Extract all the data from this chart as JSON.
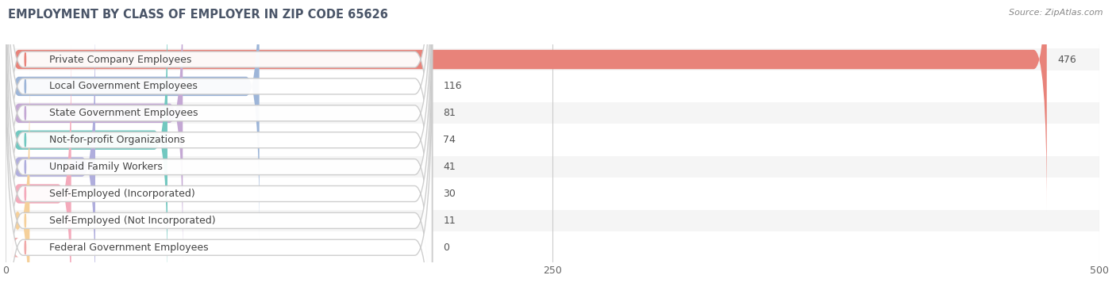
{
  "title": "EMPLOYMENT BY CLASS OF EMPLOYER IN ZIP CODE 65626",
  "source": "Source: ZipAtlas.com",
  "categories": [
    "Private Company Employees",
    "Local Government Employees",
    "State Government Employees",
    "Not-for-profit Organizations",
    "Unpaid Family Workers",
    "Self-Employed (Incorporated)",
    "Self-Employed (Not Incorporated)",
    "Federal Government Employees"
  ],
  "values": [
    476,
    116,
    81,
    74,
    41,
    30,
    11,
    0
  ],
  "bar_colors": [
    "#e8837a",
    "#9db5d8",
    "#c4a8d4",
    "#72c8c0",
    "#b0aedd",
    "#f4aabb",
    "#f5d09a",
    "#f0a8a8"
  ],
  "xlim": [
    0,
    500
  ],
  "xticks": [
    0,
    250,
    500
  ],
  "background_color": "#ffffff",
  "row_bg_even": "#f5f5f5",
  "row_bg_odd": "#ffffff",
  "title_fontsize": 10.5,
  "label_fontsize": 9,
  "value_fontsize": 9,
  "source_fontsize": 8
}
